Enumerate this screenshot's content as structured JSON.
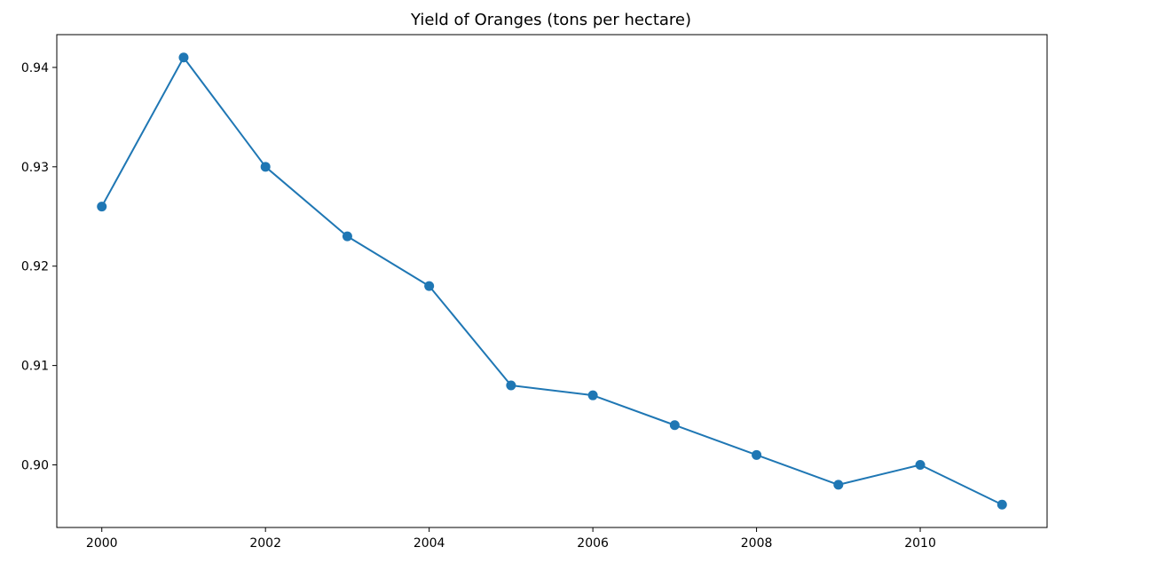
{
  "chart_data": {
    "type": "line",
    "title": "Yield of Oranges (tons per hectare)",
    "xlabel": "",
    "ylabel": "",
    "x": [
      2000,
      2001,
      2002,
      2003,
      2004,
      2005,
      2006,
      2007,
      2008,
      2009,
      2010,
      2011
    ],
    "series": [
      {
        "values": [
          0.926,
          0.941,
          0.93,
          0.923,
          0.918,
          0.908,
          0.907,
          0.904,
          0.901,
          0.898,
          0.9,
          0.896
        ],
        "color": "#1f77b4",
        "marker": "circle"
      }
    ],
    "xlim": [
      1999.45,
      2011.55
    ],
    "ylim": [
      0.8937,
      0.9433
    ],
    "xticks": [
      2000,
      2002,
      2004,
      2006,
      2008,
      2010
    ],
    "xtick_labels": [
      "2000",
      "2002",
      "2004",
      "2006",
      "2008",
      "2010"
    ],
    "yticks": [
      0.9,
      0.91,
      0.92,
      0.93,
      0.94
    ],
    "ytick_labels": [
      "0.90",
      "0.91",
      "0.92",
      "0.93",
      "0.94"
    ],
    "grid": false,
    "legend": "none"
  }
}
